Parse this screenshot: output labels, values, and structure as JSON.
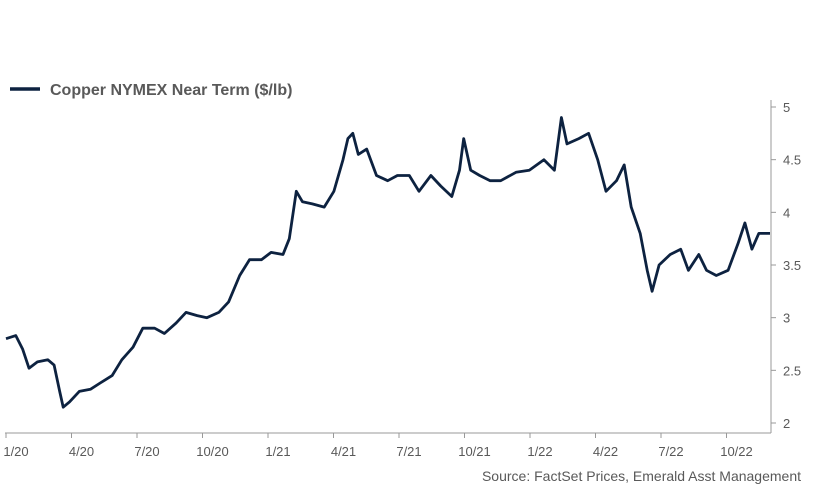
{
  "chart_data": {
    "type": "line",
    "title": "",
    "xlabel": "",
    "ylabel": "",
    "legend_position": "top-left",
    "grid": false,
    "line_color": "#0d2240",
    "x_ticks": [
      "1/20",
      "4/20",
      "7/20",
      "10/20",
      "1/21",
      "4/21",
      "7/21",
      "10/21",
      "1/22",
      "4/22",
      "7/22",
      "10/22"
    ],
    "y_ticks": [
      "2",
      "2.5",
      "3",
      "3.5",
      "4",
      "4.5",
      "5"
    ],
    "ylim": [
      2,
      5
    ],
    "xlim": [
      "2020-01-01",
      "2022-12-31"
    ],
    "y_axis_side": "right",
    "series": [
      {
        "name": "Copper NYMEX Near Term ($/lb)",
        "points": [
          [
            "2020-01-01",
            2.8
          ],
          [
            "2020-01-15",
            2.83
          ],
          [
            "2020-01-25",
            2.7
          ],
          [
            "2020-02-03",
            2.52
          ],
          [
            "2020-02-15",
            2.58
          ],
          [
            "2020-03-01",
            2.6
          ],
          [
            "2020-03-10",
            2.55
          ],
          [
            "2020-03-18",
            2.3
          ],
          [
            "2020-03-23",
            2.15
          ],
          [
            "2020-04-01",
            2.2
          ],
          [
            "2020-04-15",
            2.3
          ],
          [
            "2020-05-01",
            2.32
          ],
          [
            "2020-05-15",
            2.38
          ],
          [
            "2020-06-01",
            2.45
          ],
          [
            "2020-06-15",
            2.6
          ],
          [
            "2020-07-01",
            2.72
          ],
          [
            "2020-07-15",
            2.9
          ],
          [
            "2020-08-01",
            2.9
          ],
          [
            "2020-08-15",
            2.85
          ],
          [
            "2020-09-01",
            2.95
          ],
          [
            "2020-09-15",
            3.05
          ],
          [
            "2020-10-01",
            3.02
          ],
          [
            "2020-10-15",
            3.0
          ],
          [
            "2020-11-01",
            3.05
          ],
          [
            "2020-11-15",
            3.15
          ],
          [
            "2020-12-01",
            3.4
          ],
          [
            "2020-12-15",
            3.55
          ],
          [
            "2021-01-01",
            3.55
          ],
          [
            "2021-01-15",
            3.62
          ],
          [
            "2021-02-01",
            3.6
          ],
          [
            "2021-02-10",
            3.75
          ],
          [
            "2021-02-20",
            4.2
          ],
          [
            "2021-03-01",
            4.1
          ],
          [
            "2021-03-15",
            4.08
          ],
          [
            "2021-04-01",
            4.05
          ],
          [
            "2021-04-15",
            4.2
          ],
          [
            "2021-04-28",
            4.5
          ],
          [
            "2021-05-05",
            4.7
          ],
          [
            "2021-05-12",
            4.75
          ],
          [
            "2021-05-20",
            4.55
          ],
          [
            "2021-06-01",
            4.6
          ],
          [
            "2021-06-15",
            4.35
          ],
          [
            "2021-07-01",
            4.3
          ],
          [
            "2021-07-15",
            4.35
          ],
          [
            "2021-08-01",
            4.35
          ],
          [
            "2021-08-15",
            4.2
          ],
          [
            "2021-09-01",
            4.35
          ],
          [
            "2021-09-15",
            4.25
          ],
          [
            "2021-10-01",
            4.15
          ],
          [
            "2021-10-12",
            4.4
          ],
          [
            "2021-10-18",
            4.7
          ],
          [
            "2021-10-28",
            4.4
          ],
          [
            "2021-11-10",
            4.35
          ],
          [
            "2021-11-25",
            4.3
          ],
          [
            "2021-12-10",
            4.3
          ],
          [
            "2022-01-01",
            4.38
          ],
          [
            "2022-01-20",
            4.4
          ],
          [
            "2022-02-10",
            4.5
          ],
          [
            "2022-02-25",
            4.4
          ],
          [
            "2022-03-07",
            4.9
          ],
          [
            "2022-03-15",
            4.65
          ],
          [
            "2022-04-01",
            4.7
          ],
          [
            "2022-04-15",
            4.75
          ],
          [
            "2022-04-28",
            4.5
          ],
          [
            "2022-05-10",
            4.2
          ],
          [
            "2022-05-25",
            4.3
          ],
          [
            "2022-06-05",
            4.45
          ],
          [
            "2022-06-15",
            4.05
          ],
          [
            "2022-06-28",
            3.8
          ],
          [
            "2022-07-08",
            3.45
          ],
          [
            "2022-07-15",
            3.25
          ],
          [
            "2022-07-25",
            3.5
          ],
          [
            "2022-08-10",
            3.6
          ],
          [
            "2022-08-25",
            3.65
          ],
          [
            "2022-09-05",
            3.45
          ],
          [
            "2022-09-20",
            3.6
          ],
          [
            "2022-10-01",
            3.45
          ],
          [
            "2022-10-15",
            3.4
          ],
          [
            "2022-11-01",
            3.45
          ],
          [
            "2022-11-15",
            3.7
          ],
          [
            "2022-11-25",
            3.9
          ],
          [
            "2022-12-05",
            3.65
          ],
          [
            "2022-12-15",
            3.8
          ],
          [
            "2022-12-31",
            3.8
          ]
        ]
      }
    ]
  },
  "legend": {
    "label": "Copper NYMEX Near Term ($/lb)"
  },
  "source": "Source: FactSet Prices, Emerald Asst Management"
}
